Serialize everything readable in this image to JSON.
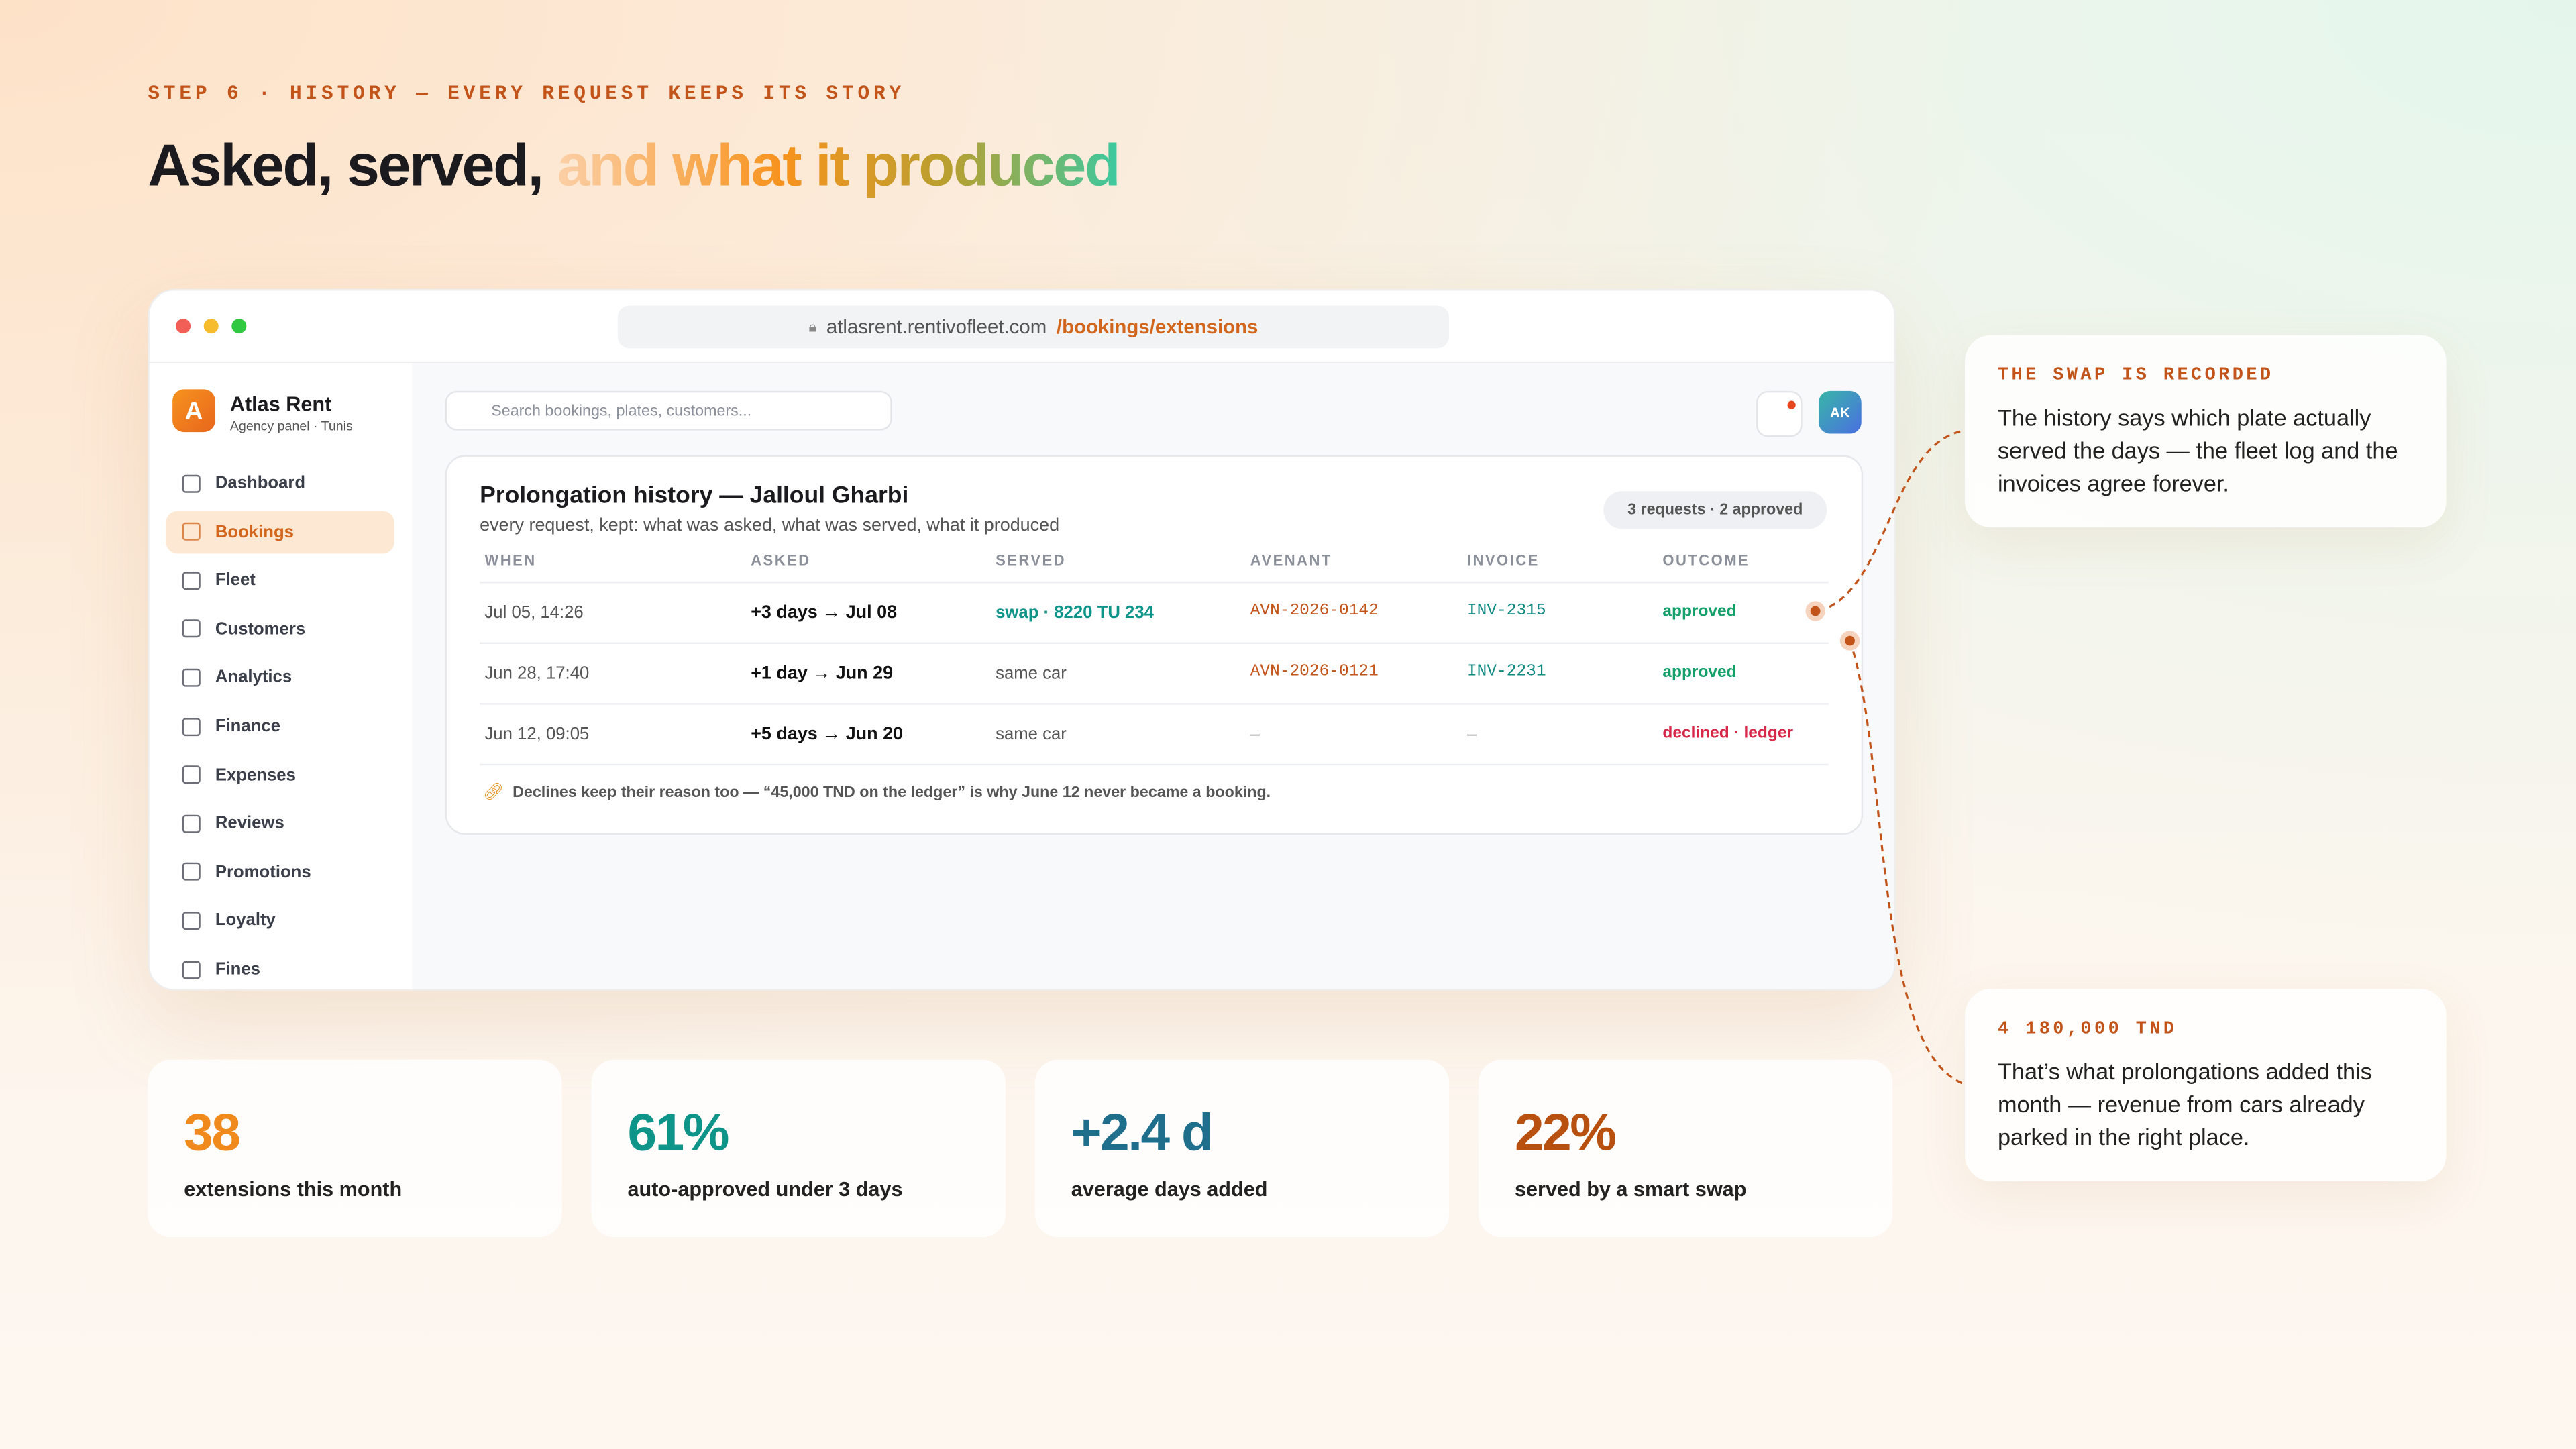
{
  "step": "STEP 6 · HISTORY — EVERY REQUEST KEEPS ITS STORY",
  "headline": {
    "plain": "Asked, served,",
    "accent": "and what it produced"
  },
  "browser": {
    "host": "atlasrent.rentivofleet.com",
    "path": "/bookings/extensions"
  },
  "sidebar": {
    "logo": "A",
    "brand": "Atlas Rent",
    "sub": "Agency panel · Tunis",
    "active": 1,
    "nav": [
      "Dashboard",
      "Bookings",
      "Fleet",
      "Customers",
      "Analytics",
      "Finance",
      "Expenses",
      "Reviews",
      "Promotions",
      "Loyalty",
      "Fines"
    ]
  },
  "topbar": {
    "search": "Search bookings, plates, customers...",
    "avatar": "AK"
  },
  "panel": {
    "title": "Prolongation history — Jalloul Gharbi",
    "subtitle": "every request, kept: what was asked, what was served, what it produced",
    "badge": "3 requests · 2 approved",
    "table": {
      "headers": [
        "WHEN",
        "ASKED",
        "SERVED",
        "AVENANT",
        "INVOICE",
        "OUTCOME"
      ],
      "rows": [
        [
          "Jul 05, 14:26",
          "+3 days → Jul 08",
          "swap · 8220 TU 234",
          "AVN-2026-0142",
          "INV-2315",
          "approved"
        ],
        [
          "Jun 28, 17:40",
          "+1 day → Jun 29",
          "same car",
          "AVN-2026-0121",
          "INV-2231",
          "approved"
        ],
        [
          "Jun 12, 09:05",
          "+5 days → Jun 20",
          "same car",
          "–",
          "–",
          "declined · ledger"
        ]
      ]
    },
    "note": "Declines keep their reason too — “45,000 TND on the ledger” is why June 12 never became a booking."
  },
  "stats": [
    {
      "value": "38",
      "label": "extensions this month"
    },
    {
      "value": "61%",
      "label": "auto-approved under 3 days"
    },
    {
      "value": "+2.4 d",
      "label": "average days added"
    },
    {
      "value": "22%",
      "label": "served by a smart swap"
    }
  ],
  "callouts": [
    {
      "tag": "THE SWAP IS RECORDED",
      "text": "The history says which plate actually served the days — the fleet log and the invoices agree forever."
    },
    {
      "tag": "4 180,000 TND",
      "text": "That’s what prolongations added this month — revenue from cars already parked in the right place."
    }
  ]
}
